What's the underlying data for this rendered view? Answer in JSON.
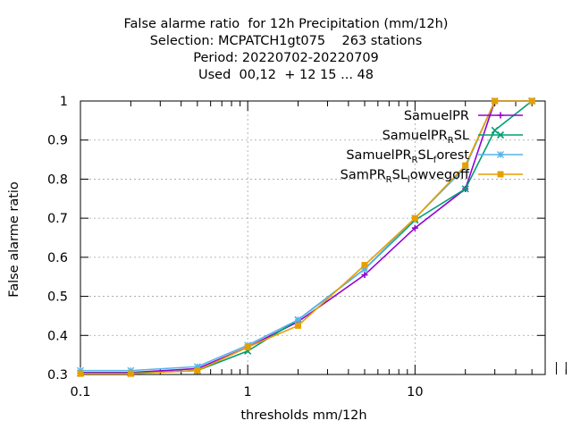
{
  "chart_data": {
    "type": "line",
    "title_lines": [
      "False alarme ratio  for 12h Precipitation (mm/12h)",
      "Selection: MCPATCH1gt075    263 stations",
      "Period: 20220702-20220709",
      "Used  00,12  + 12 15 ... 48"
    ],
    "xlabel": "thresholds mm/12h",
    "ylabel": "False alarme ratio",
    "xscale": "log",
    "xlim": [
      0.1,
      60
    ],
    "ylim": [
      0.3,
      1.0
    ],
    "x_ticks": [
      0.1,
      1,
      10
    ],
    "x_tick_labels": [
      "0.1",
      "1",
      "10"
    ],
    "y_ticks": [
      0.3,
      0.4,
      0.5,
      0.6,
      0.7,
      0.8,
      0.9,
      1.0
    ],
    "y_tick_labels": [
      "0.3",
      "0.4",
      "0.5",
      "0.6",
      "0.7",
      "0.8",
      "0.9",
      "1"
    ],
    "grid": true,
    "legend_position": "top-right",
    "x": [
      0.1,
      0.2,
      0.5,
      1,
      2,
      5,
      10,
      20,
      30,
      50
    ],
    "series": [
      {
        "name": "SamuelPR",
        "color": "#9400d3",
        "marker": "plus",
        "values": [
          0.305,
          0.305,
          0.315,
          0.37,
          0.435,
          0.555,
          0.675,
          0.775,
          1.0,
          1.0
        ]
      },
      {
        "name_main": "SamuelPR",
        "name_sub": "R",
        "name_tail": "SL",
        "color": "#009e73",
        "marker": "cross",
        "values": [
          0.303,
          0.303,
          0.31,
          0.36,
          0.44,
          0.57,
          0.695,
          0.775,
          0.925,
          1.0
        ]
      },
      {
        "name_main": "SamuelPR",
        "name_sub": "R",
        "name_tail": "SL",
        "name_sub2": "f",
        "name_tail2": "orest",
        "color": "#56b4e9",
        "marker": "star",
        "values": [
          0.31,
          0.31,
          0.32,
          0.375,
          0.44,
          0.57,
          0.7,
          0.83,
          1.0,
          1.0
        ]
      },
      {
        "name_main": "SamPR",
        "name_sub": "R",
        "name_tail": "SL",
        "name_sub2": "l",
        "name_tail2": "owvegoff",
        "color": "#e69f00",
        "marker": "square",
        "values": [
          0.302,
          0.302,
          0.31,
          0.37,
          0.425,
          0.58,
          0.7,
          0.835,
          1.0,
          1.0
        ]
      }
    ]
  }
}
